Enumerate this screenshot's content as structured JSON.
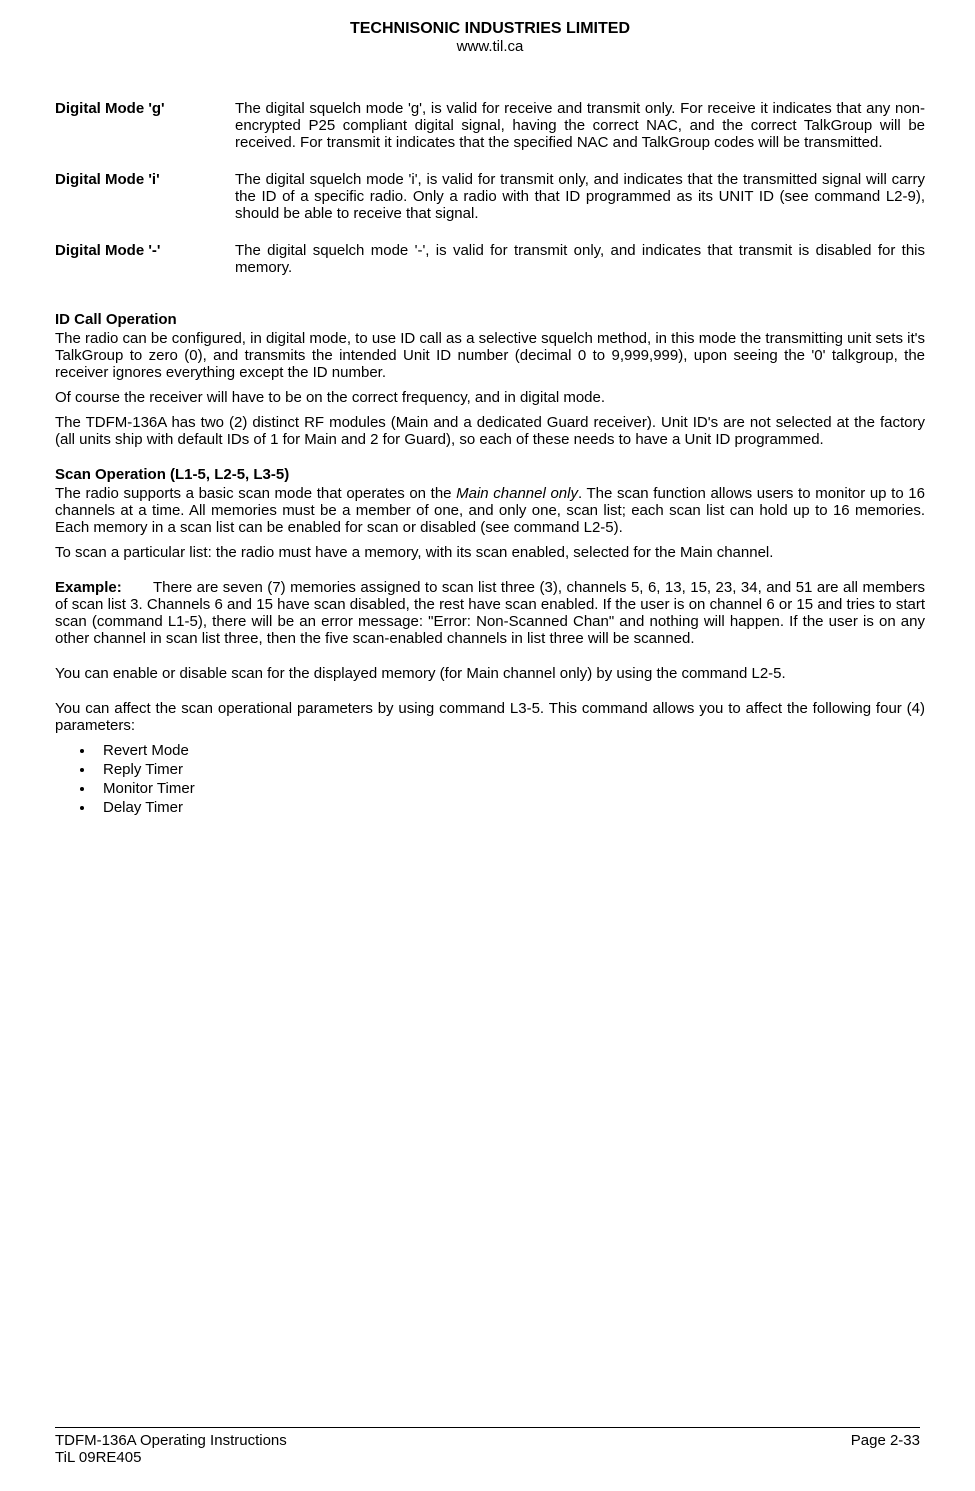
{
  "header": {
    "company": "TECHNISONIC INDUSTRIES LIMITED",
    "url": "www.til.ca"
  },
  "definitions": [
    {
      "label": "Digital Mode 'g'",
      "body": "The digital squelch mode 'g', is valid for receive and transmit only. For receive it indicates that any non-encrypted P25 compliant digital signal, having the correct NAC, and the correct TalkGroup will be received. For transmit it indicates that the specified NAC and TalkGroup codes will be transmitted."
    },
    {
      "label": "Digital Mode 'i'",
      "body": "The digital squelch mode 'i', is valid for transmit only, and indicates that the transmitted signal will carry the ID of a specific radio. Only a radio with that ID programmed as its UNIT ID (see command L2-9), should be able to receive that signal."
    },
    {
      "label": "Digital Mode '-'",
      "body": "The digital squelch mode '-', is valid for transmit only, and indicates that transmit is disabled for this memory."
    }
  ],
  "id_call": {
    "heading": "ID Call Operation",
    "p1": "The radio can be configured, in digital mode, to use ID call as a selective squelch method, in this mode the transmitting unit sets it's TalkGroup to zero (0), and transmits the intended Unit ID number (decimal 0 to 9,999,999), upon seeing the '0' talkgroup, the receiver ignores everything except the ID number.",
    "p2": "Of course the receiver will have to be on the correct frequency, and in digital mode.",
    "p3": "The TDFM-136A has two (2) distinct RF modules (Main and a dedicated Guard receiver). Unit ID's are not selected at the factory (all units ship with default IDs of 1 for Main and 2 for Guard), so each of these needs to have a Unit ID programmed."
  },
  "scan": {
    "heading": "Scan Operation (L1-5, L2-5, L3-5)",
    "p1_pre": "The radio supports a basic scan mode that operates on the ",
    "p1_ital": "Main channel only",
    "p1_post": ". The scan function allows users to monitor up to 16 channels at a time. All memories must be a member of one, and only one, scan list; each scan list can hold up to 16 memories. Each memory in a scan list can be enabled for scan or disabled (see command L2-5).",
    "p2": "To scan a particular list: the radio must have a memory, with its scan enabled, selected for the Main channel."
  },
  "example": {
    "label": "Example:",
    "p1": "There are seven (7) memories assigned to scan list three (3), channels 5, 6, 13, 15, 23, 34, and 51 are all members of scan list 3. Channels 6 and 15 have scan disabled, the rest have scan enabled. If the user is on channel 6 or 15 and tries to start scan (command L1-5), there will be an error message: \"Error: Non-Scanned Chan\" and nothing will happen. If the user is on any other channel in scan list three, then the five scan-enabled channels in list three will be scanned.",
    "p2": "You can enable or disable scan for the displayed memory (for Main channel only) by using the command L2-5.",
    "p3": "You can affect the scan operational parameters by using command L3-5. This command allows you to affect the following four (4) parameters:"
  },
  "bullets": [
    "Revert Mode",
    "Reply Timer",
    "Monitor Timer",
    "Delay Timer"
  ],
  "footer": {
    "left1": "TDFM-136A    Operating Instructions",
    "left2": "TiL 09RE405",
    "right": "Page 2-33"
  }
}
